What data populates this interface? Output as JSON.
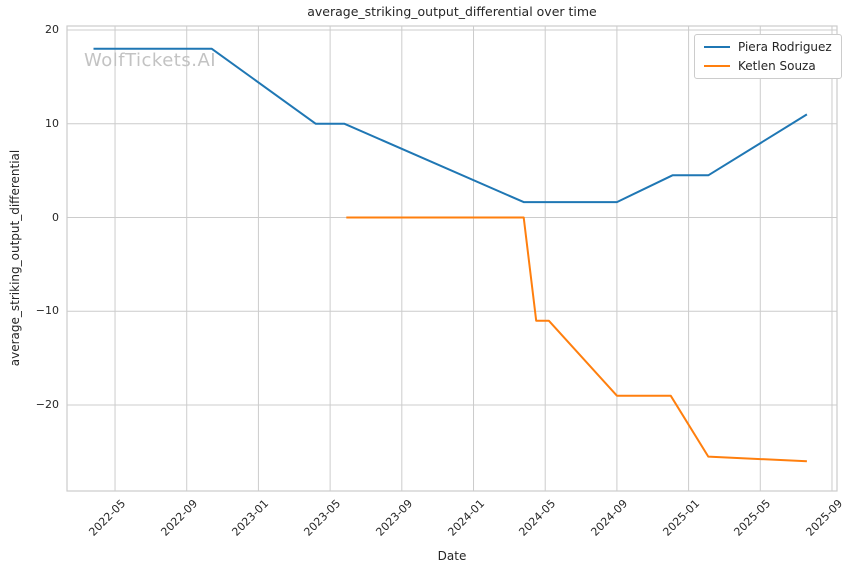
{
  "watermark": "WolfTickets.AI",
  "chart_data": {
    "type": "line",
    "title": "average_striking_output_differential over time",
    "xlabel": "Date",
    "ylabel": "average_striking_output_differential",
    "grid": true,
    "legend_position": "upper right",
    "background_color": "#ffffff",
    "grid_color": "#cccccc",
    "text_color": "#262626",
    "x_tick_labels": [
      "2022-05",
      "2022-09",
      "2023-01",
      "2023-05",
      "2023-09",
      "2024-01",
      "2024-05",
      "2024-09",
      "2025-01",
      "2025-05",
      "2025-09"
    ],
    "y_tick_values": [
      20,
      10,
      0,
      -10,
      -20
    ],
    "y_tick_labels": [
      "20",
      "10",
      "0",
      "−10",
      "−20"
    ],
    "xlim_months_since_2022_01": [
      1.32,
      44.28
    ],
    "ylim": [
      -29.17,
      20.43
    ],
    "series": [
      {
        "name": "Piera Rodriguez",
        "color": "#1f77b4",
        "points": [
          [
            "2022-03-25",
            18
          ],
          [
            "2022-10-13",
            18
          ],
          [
            "2023-04-07",
            10
          ],
          [
            "2023-05-25",
            10
          ],
          [
            "2024-03-25",
            1.65
          ],
          [
            "2024-09-01",
            1.65
          ],
          [
            "2024-12-04",
            4.5
          ],
          [
            "2025-02-04",
            4.5
          ],
          [
            "2025-07-19",
            11
          ]
        ]
      },
      {
        "name": "Ketlen Souza",
        "color": "#ff7f0e",
        "points": [
          [
            "2023-05-28",
            0
          ],
          [
            "2024-03-25",
            0
          ],
          [
            "2024-04-16",
            -11
          ],
          [
            "2024-05-07",
            -11
          ],
          [
            "2024-09-01",
            -19
          ],
          [
            "2024-12-01",
            -19
          ],
          [
            "2025-02-04",
            -25.5
          ],
          [
            "2025-07-19",
            -26
          ]
        ]
      }
    ]
  },
  "legend": {
    "items": [
      {
        "label": "Piera Rodriguez",
        "color": "#1f77b4"
      },
      {
        "label": "Ketlen Souza",
        "color": "#ff7f0e"
      }
    ]
  }
}
